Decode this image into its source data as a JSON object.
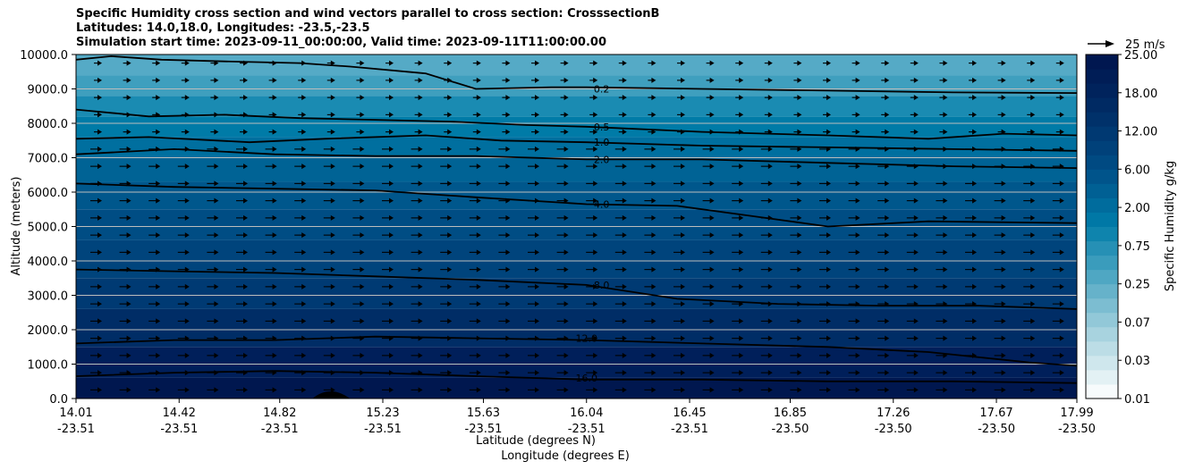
{
  "title": {
    "line1": "Specific Humidity cross section and wind vectors parallel to cross section: CrosssectionB",
    "line2": "Latitudes: 14.0,18.0, Longitudes: -23.5,-23.5",
    "line3": "Simulation start time: 2023-09-11_00:00:00, Valid time: 2023-09-11T11:00:00.00"
  },
  "chart_data": {
    "type": "heatmap",
    "ylabel": "Altitude (meters)",
    "xlabel_lat": "Latitude (degrees N)",
    "xlabel_lon": "Longitude (degrees E)",
    "ylim": [
      0,
      10000
    ],
    "xlim": [
      14.01,
      17.99
    ],
    "y_ticks": [
      "0.0",
      "1000.0",
      "2000.0",
      "3000.0",
      "4000.0",
      "5000.0",
      "6000.0",
      "7000.0",
      "8000.0",
      "9000.0",
      "10000.0"
    ],
    "x_ticks": [
      {
        "lat": "14.01",
        "lon": "-23.51"
      },
      {
        "lat": "14.42",
        "lon": "-23.51"
      },
      {
        "lat": "14.82",
        "lon": "-23.51"
      },
      {
        "lat": "15.23",
        "lon": "-23.51"
      },
      {
        "lat": "15.63",
        "lon": "-23.51"
      },
      {
        "lat": "16.04",
        "lon": "-23.51"
      },
      {
        "lat": "16.45",
        "lon": "-23.51"
      },
      {
        "lat": "16.85",
        "lon": "-23.50"
      },
      {
        "lat": "17.26",
        "lon": "-23.50"
      },
      {
        "lat": "17.67",
        "lon": "-23.50"
      },
      {
        "lat": "17.99",
        "lon": "-23.50"
      }
    ],
    "grid": "horizontal",
    "colorbar": {
      "label": "Specific Humidity g/kg",
      "tick_labels": [
        "0.01",
        "0.03",
        "0.07",
        "0.25",
        "0.75",
        "2.00",
        "6.00",
        "12.00",
        "18.00",
        "25.00"
      ],
      "colors": [
        "#f7fbfc",
        "#e3f1f4",
        "#cfe7ed",
        "#bcdde6",
        "#a8d3df",
        "#92c8d8",
        "#7cbdd1",
        "#66b2ca",
        "#4fa7c3",
        "#3a9cbc",
        "#2690b5",
        "#0f84ad",
        "#0078a6",
        "#006c9d",
        "#006094",
        "#00548b",
        "#004a82",
        "#00417a",
        "#003972",
        "#00316a",
        "#002a63",
        "#00235c",
        "#001d56",
        "#001750"
      ]
    },
    "contours": [
      {
        "level": "0.2",
        "points": [
          [
            14.01,
            9850
          ],
          [
            14.15,
            9950
          ],
          [
            14.35,
            9850
          ],
          [
            14.6,
            9800
          ],
          [
            14.9,
            9750
          ],
          [
            15.1,
            9650
          ],
          [
            15.4,
            9450
          ],
          [
            15.6,
            9000
          ],
          [
            15.9,
            9050
          ],
          [
            16.04,
            9050
          ],
          [
            16.5,
            9000
          ],
          [
            17.0,
            8950
          ],
          [
            17.5,
            8900
          ],
          [
            17.99,
            8880
          ]
        ],
        "label_at": [
          16.1,
          9000
        ]
      },
      {
        "level": "0.5",
        "points": [
          [
            14.01,
            8400
          ],
          [
            14.3,
            8200
          ],
          [
            14.6,
            8250
          ],
          [
            14.9,
            8150
          ],
          [
            15.2,
            8100
          ],
          [
            15.5,
            8050
          ],
          [
            15.8,
            7950
          ],
          [
            16.04,
            7900
          ],
          [
            16.5,
            7750
          ],
          [
            17.0,
            7650
          ],
          [
            17.4,
            7550
          ],
          [
            17.7,
            7700
          ],
          [
            17.99,
            7650
          ]
        ],
        "label_at": [
          16.1,
          7900
        ]
      },
      {
        "level": "1.0",
        "points": [
          [
            14.01,
            7550
          ],
          [
            14.3,
            7600
          ],
          [
            14.7,
            7450
          ],
          [
            15.0,
            7550
          ],
          [
            15.4,
            7650
          ],
          [
            15.7,
            7500
          ],
          [
            16.04,
            7450
          ],
          [
            16.5,
            7350
          ],
          [
            17.0,
            7300
          ],
          [
            17.5,
            7250
          ],
          [
            17.99,
            7200
          ]
        ],
        "label_at": [
          16.1,
          7450
        ]
      },
      {
        "level": "2.0",
        "points": [
          [
            14.01,
            7100
          ],
          [
            14.4,
            7250
          ],
          [
            14.8,
            7100
          ],
          [
            15.2,
            7050
          ],
          [
            15.6,
            7050
          ],
          [
            16.04,
            6950
          ],
          [
            16.5,
            6950
          ],
          [
            17.0,
            6850
          ],
          [
            17.5,
            6750
          ],
          [
            17.99,
            6700
          ]
        ],
        "label_at": [
          16.1,
          6950
        ]
      },
      {
        "level": "4.0",
        "points": [
          [
            14.01,
            6250
          ],
          [
            14.4,
            6150
          ],
          [
            14.8,
            6100
          ],
          [
            15.2,
            6050
          ],
          [
            15.6,
            5850
          ],
          [
            16.04,
            5650
          ],
          [
            16.4,
            5600
          ],
          [
            16.7,
            5300
          ],
          [
            17.0,
            5000
          ],
          [
            17.4,
            5150
          ],
          [
            17.99,
            5100
          ]
        ],
        "label_at": [
          16.1,
          5650
        ]
      },
      {
        "level": "8.0",
        "points": [
          [
            14.01,
            3750
          ],
          [
            14.4,
            3700
          ],
          [
            14.8,
            3650
          ],
          [
            15.2,
            3550
          ],
          [
            15.6,
            3450
          ],
          [
            16.04,
            3300
          ],
          [
            16.4,
            2900
          ],
          [
            16.8,
            2750
          ],
          [
            17.2,
            2700
          ],
          [
            17.6,
            2700
          ],
          [
            17.99,
            2600
          ]
        ],
        "label_at": [
          16.1,
          3300
        ]
      },
      {
        "level": "12.0",
        "points": [
          [
            14.01,
            1600
          ],
          [
            14.4,
            1700
          ],
          [
            14.8,
            1700
          ],
          [
            15.2,
            1800
          ],
          [
            15.6,
            1750
          ],
          [
            16.04,
            1700
          ],
          [
            16.5,
            1600
          ],
          [
            17.0,
            1500
          ],
          [
            17.4,
            1350
          ],
          [
            17.8,
            1050
          ],
          [
            17.99,
            950
          ]
        ],
        "label_at": [
          16.04,
          1750
        ]
      },
      {
        "level": "16.0",
        "points": [
          [
            14.01,
            650
          ],
          [
            14.4,
            750
          ],
          [
            14.8,
            800
          ],
          [
            15.2,
            750
          ],
          [
            15.6,
            650
          ],
          [
            16.04,
            550
          ],
          [
            16.5,
            550
          ],
          [
            17.0,
            500
          ],
          [
            17.5,
            500
          ],
          [
            17.99,
            450
          ]
        ],
        "label_at": [
          16.04,
          600
        ]
      }
    ],
    "vector_scale": {
      "label": "25 m/s",
      "speed": 25
    }
  }
}
